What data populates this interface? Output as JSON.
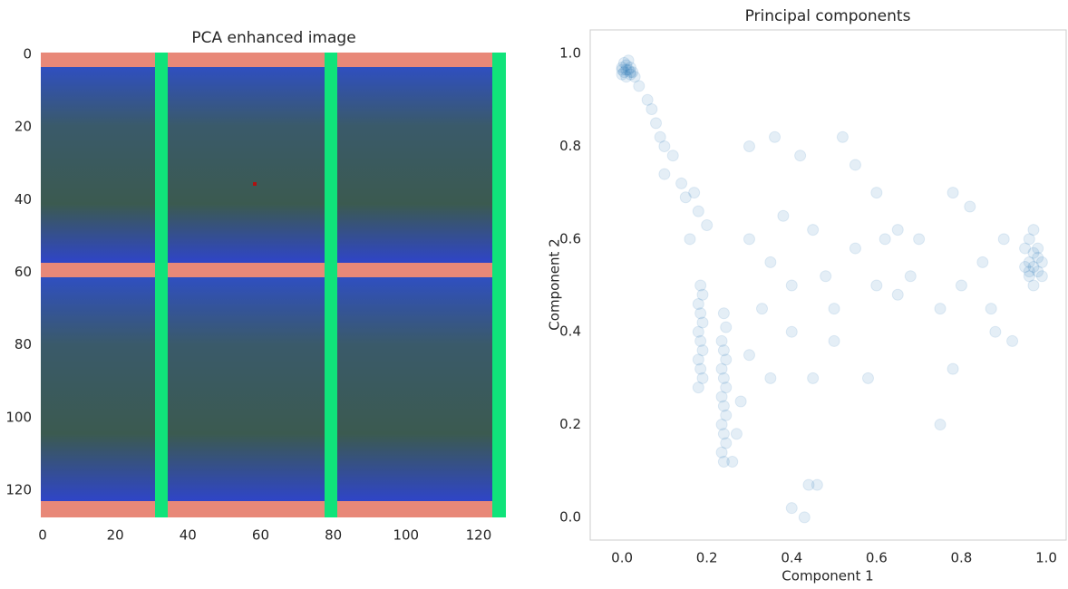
{
  "chart_data": [
    {
      "type": "image",
      "title": "PCA enhanced image",
      "xlim": [
        -0.5,
        127.5
      ],
      "ylim": [
        127.5,
        -0.5
      ],
      "xticks": [
        0,
        20,
        40,
        60,
        80,
        100,
        120
      ],
      "yticks": [
        0,
        20,
        40,
        60,
        80,
        100,
        120
      ],
      "grid": false
    },
    {
      "type": "scatter",
      "title": "Principal components",
      "x_label": "Component 1",
      "y_label": "Component 2",
      "color": "#1f77b4",
      "alpha": 0.12,
      "grid": false,
      "xlim": [
        -0.075,
        1.047
      ],
      "ylim": [
        -0.049,
        1.051
      ],
      "xticks": [
        {
          "value": 0,
          "label": "0.0"
        },
        0.2,
        0.4,
        0.6,
        0.8,
        {
          "value": 1,
          "label": "1.0"
        }
      ],
      "yticks": [
        {
          "value": 0,
          "label": "0.0"
        },
        0.2,
        0.4,
        0.6,
        0.8,
        {
          "value": 1,
          "label": "1.0"
        }
      ],
      "x": [
        0,
        0.005,
        0.01,
        0.015,
        0.02,
        0,
        0.01,
        0.02,
        0.005,
        0.015,
        0.01,
        0,
        0.02,
        0.025,
        0.03,
        0.04,
        0.06,
        0.07,
        0.08,
        0.09,
        0.1,
        0.12,
        0.1,
        0.14,
        0.15,
        0.17,
        0.18,
        0.2,
        0.16,
        0.96,
        0.97,
        0.98,
        0.96,
        0.97,
        0.98,
        0.95,
        0.96,
        0.99,
        0.97,
        0.96,
        0.98,
        0.95,
        0.97,
        0.99,
        0.18,
        0.19,
        0.185,
        0.18,
        0.19,
        0.185,
        0.18,
        0.19,
        0.185,
        0.18,
        0.19,
        0.185,
        0.24,
        0.235,
        0.245,
        0.24,
        0.235,
        0.245,
        0.24,
        0.235,
        0.245,
        0.24,
        0.235,
        0.245,
        0.24,
        0.235,
        0.245,
        0.24,
        0.3,
        0.35,
        0.4,
        0.45,
        0.5,
        0.55,
        0.6,
        0.65,
        0.7,
        0.75,
        0.8,
        0.85,
        0.88,
        0.9,
        0.87,
        0.3,
        0.35,
        0.4,
        0.45,
        0.5,
        0.28,
        0.3,
        0.36,
        0.42,
        0.52,
        0.55,
        0.6,
        0.65,
        0.78,
        0.82,
        0.44,
        0.46,
        0.4,
        0.43,
        0.75,
        0.78,
        0.92,
        0.27,
        0.26,
        0.58,
        0.68,
        0.33,
        0.38,
        0.48,
        0.62
      ],
      "y": [
        0.97,
        0.96,
        0.975,
        0.965,
        0.97,
        0.955,
        0.95,
        0.96,
        0.98,
        0.985,
        0.965,
        0.965,
        0.955,
        0.96,
        0.95,
        0.93,
        0.9,
        0.88,
        0.85,
        0.82,
        0.8,
        0.78,
        0.74,
        0.72,
        0.69,
        0.7,
        0.66,
        0.63,
        0.6,
        0.55,
        0.54,
        0.53,
        0.52,
        0.57,
        0.56,
        0.58,
        0.6,
        0.55,
        0.5,
        0.53,
        0.58,
        0.54,
        0.62,
        0.52,
        0.28,
        0.3,
        0.32,
        0.34,
        0.36,
        0.38,
        0.4,
        0.42,
        0.44,
        0.46,
        0.48,
        0.5,
        0.12,
        0.14,
        0.16,
        0.18,
        0.2,
        0.22,
        0.24,
        0.26,
        0.28,
        0.3,
        0.32,
        0.34,
        0.36,
        0.38,
        0.41,
        0.44,
        0.6,
        0.55,
        0.5,
        0.62,
        0.45,
        0.58,
        0.5,
        0.48,
        0.6,
        0.45,
        0.5,
        0.55,
        0.4,
        0.6,
        0.45,
        0.35,
        0.3,
        0.4,
        0.3,
        0.38,
        0.25,
        0.8,
        0.82,
        0.78,
        0.82,
        0.76,
        0.7,
        0.62,
        0.7,
        0.67,
        0.07,
        0.07,
        0.02,
        0,
        0.2,
        0.32,
        0.38,
        0.18,
        0.12,
        0.3,
        0.52,
        0.45,
        0.65,
        0.52,
        0.6
      ]
    }
  ]
}
